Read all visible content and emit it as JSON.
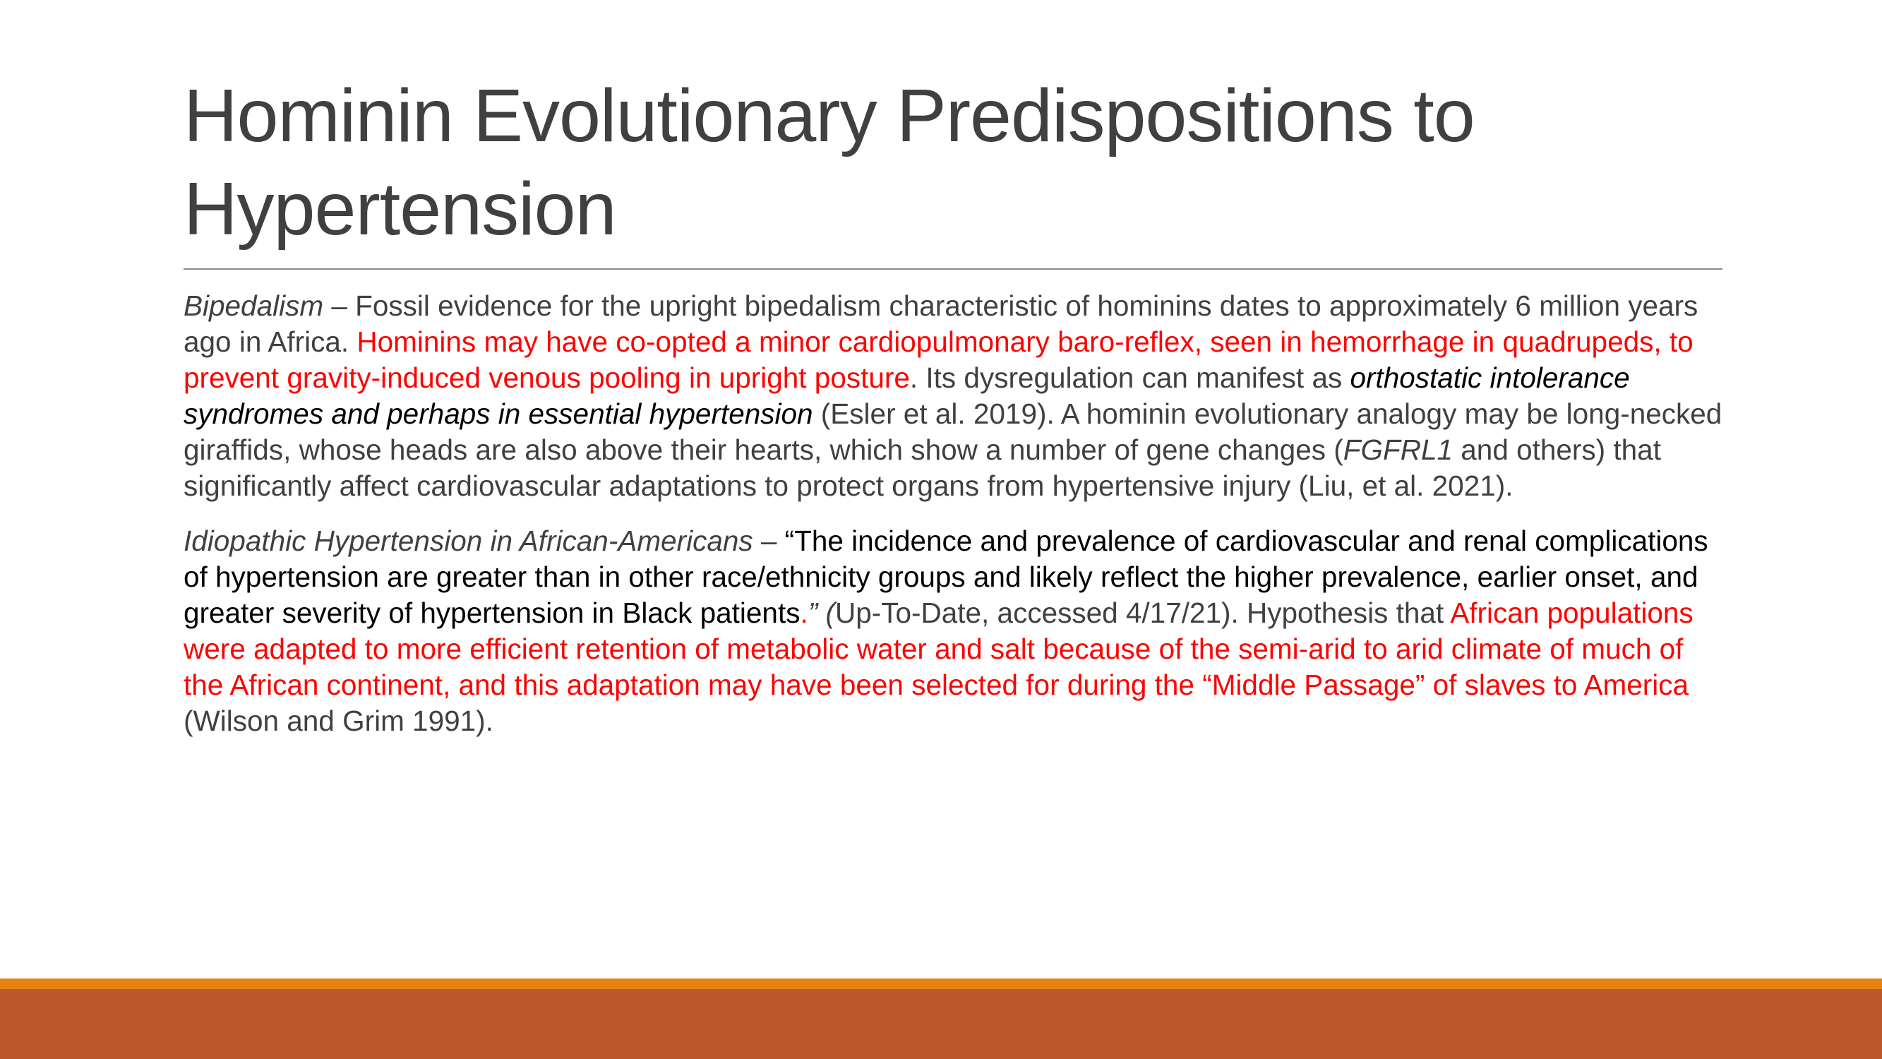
{
  "slide": {
    "title": "Hominin Evolutionary Predispositions to Hypertension",
    "colors": {
      "title_text": "#404040",
      "body_text": "#404040",
      "highlight_red": "#ff0000",
      "quote_black": "#000000",
      "footer_orange": "#e48312",
      "footer_rust": "#bd582c",
      "divider": "#8c8c8c"
    },
    "paragraphs": [
      {
        "heading": "Bipedalism",
        "dash": " – ",
        "t1": "Fossil evidence for the upright bipedalism characteristic of hominins dates to approximately 6 million years ago in Africa. ",
        "r1": "Hominins may have co-opted a minor cardiopulmonary baro-reflex, seen in hemorrhage in quadrupeds, to prevent gravity-induced venous pooling in upright posture",
        "t2": ". Its dysregulation can manifest as ",
        "i1": "orthostatic intolerance syndromes and perhaps in essential hypertension",
        "t3": " (Esler et al. 2019).  A hominin evolutionary analogy may be long-necked giraffids, whose heads are also above their hearts, which show a number of  gene changes (",
        "i2": "FGFRL1",
        "t4": " and others) that significantly affect cardiovascular adaptations to protect organs from hypertensive injury (Liu, et al. 2021)."
      },
      {
        "heading": "Idiopathic Hypertension  in African-Americans",
        "dash": " – ",
        "q1": "“The incidence and prevalence of cardiovascular and renal complications of hypertension are greater than in other race/ethnicity groups and likely reflect the higher prevalence, earlier onset, and greater severity of hypertension in Black patients",
        "qdot": ".",
        "qclose": "” (",
        "t1": "Up-To-Date, accessed 4/17/21). Hypothesis that ",
        "r1": "African populations were adapted to more efficient retention of metabolic water and salt because of the semi-arid  to arid climate of much of the African continent, and this adaptation may have been selected for during the “Middle Passage”  of slaves to America",
        "t2": " (Wilson and Grim 1991)."
      }
    ]
  }
}
